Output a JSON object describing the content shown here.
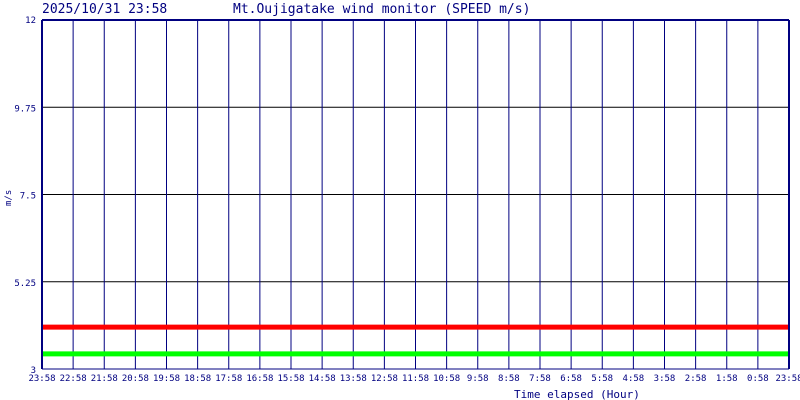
{
  "header": {
    "timestamp": "2025/10/31 23:58",
    "title": "Mt.Oujigatake wind monitor (SPEED m/s)"
  },
  "chart_data": {
    "type": "line",
    "title": "Mt.Oujigatake wind monitor (SPEED m/s)",
    "xlabel": "Time elapsed (Hour)",
    "ylabel": "m/s",
    "ylim": [
      3,
      12
    ],
    "yticks": [
      "3",
      "5.25",
      "7.5",
      "9.75",
      "12"
    ],
    "x_tick_labels": [
      "23:58",
      "22:58",
      "21:58",
      "20:58",
      "19:58",
      "18:58",
      "17:58",
      "16:58",
      "15:58",
      "14:58",
      "13:58",
      "12:58",
      "11:58",
      "10:58",
      "9:58",
      "8:58",
      "7:58",
      "6:58",
      "5:58",
      "4:58",
      "3:58",
      "2:58",
      "1:58",
      "0:58",
      "23:58"
    ],
    "grid": true,
    "series": [
      {
        "color": "#ff0000",
        "values": [
          4.08,
          4.08,
          4.08,
          4.08,
          4.08,
          4.08,
          4.08,
          4.08,
          4.08,
          4.08,
          4.08,
          4.08,
          4.08,
          4.08,
          4.08,
          4.08,
          4.08,
          4.08,
          4.08,
          4.08,
          4.08,
          4.08,
          4.08,
          4.08,
          4.08
        ]
      },
      {
        "color": "#00ff00",
        "values": [
          3.39,
          3.39,
          3.39,
          3.39,
          3.39,
          3.39,
          3.39,
          3.39,
          3.39,
          3.39,
          3.39,
          3.39,
          3.39,
          3.39,
          3.39,
          3.39,
          3.39,
          3.39,
          3.39,
          3.39,
          3.39,
          3.39,
          3.39,
          3.39,
          3.39
        ]
      }
    ],
    "colors": {
      "axis": "#000080",
      "hgrid": "#000000"
    }
  }
}
